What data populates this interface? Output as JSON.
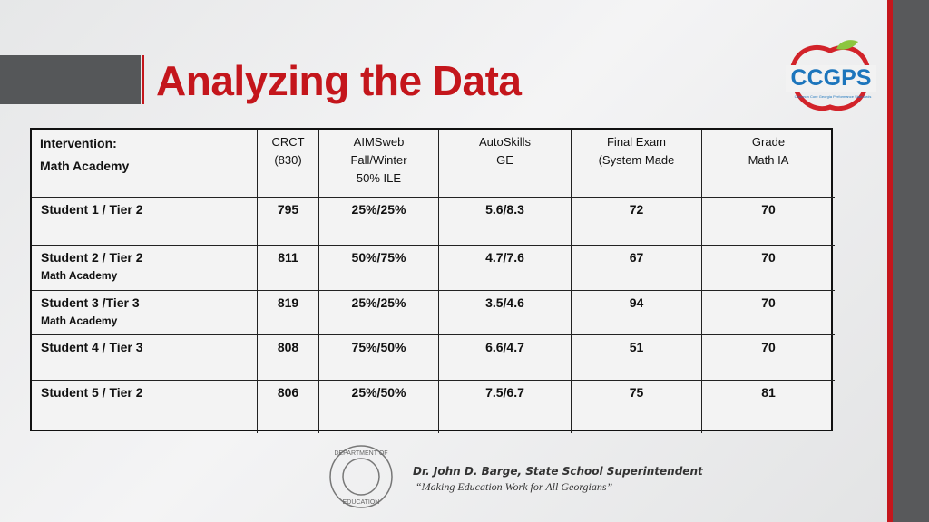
{
  "header": {
    "title": "Analyzing the Data",
    "logo": "CCGPS",
    "logo_caption": "Common Core Georgia Performance Standards"
  },
  "table": {
    "columns": [
      [
        "Intervention:",
        "Math Academy"
      ],
      [
        "CRCT",
        "(830)"
      ],
      [
        "AIMSweb",
        "Fall/Winter",
        "50% ILE"
      ],
      [
        "AutoSkills",
        "GE"
      ],
      [
        "Final Exam",
        "(System Made"
      ],
      [
        "Grade",
        "Math IA"
      ]
    ],
    "rows": [
      {
        "label": "Student 1 / Tier 2",
        "cells": [
          795,
          "25%/25%",
          "5.6/8.3",
          72,
          70
        ]
      },
      {
        "label": "Student 2 / Tier 2",
        "note": "Math Academy",
        "cells": [
          811,
          "50%/75%",
          "4.7/7.6",
          67,
          70
        ]
      },
      {
        "label": "Student 3 /Tier 3",
        "note": "Math Academy",
        "cells": [
          819,
          "25%/25%",
          "3.5/4.6",
          94,
          70
        ]
      },
      {
        "label": "Student 4 / Tier 3",
        "cells": [
          808,
          "75%/50%",
          "6.6/4.7",
          51,
          70
        ]
      },
      {
        "label": "Student 5 / Tier 2",
        "cells": [
          806,
          "25%/50%",
          "7.5/6.7",
          75,
          81
        ]
      }
    ]
  },
  "footer": {
    "seal_top": "DEPARTMENT OF",
    "seal_bottom": "EDUCATION",
    "name": "Dr. John D. Barge, State School Superintendent",
    "motto": "“Making Education Work for All Georgians”"
  }
}
